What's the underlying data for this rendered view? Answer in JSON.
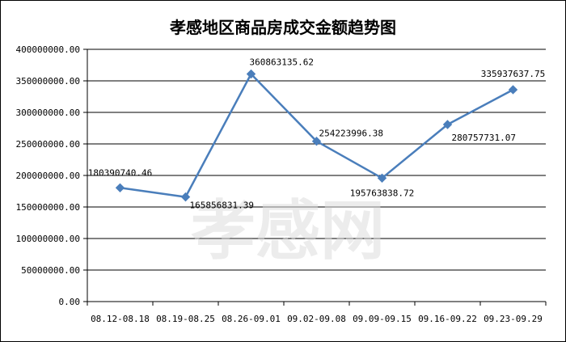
{
  "chart_data": {
    "type": "line",
    "title": "孝感地区商品房成交金额趋势图",
    "categories": [
      "08.12-08.18",
      "08.19-08.25",
      "08.26-09.01",
      "09.02-09.08",
      "09.09-09.15",
      "09.16-09.22",
      "09.23-09.29"
    ],
    "series": [
      {
        "values": [
          180390740.46,
          165856831.39,
          360863135.62,
          254223996.38,
          195763838.72,
          280757731.07,
          335937637.75
        ]
      }
    ],
    "data_labels": [
      "180390740.46",
      "165856831.39",
      "360863135.62",
      "254223996.38",
      "195763838.72",
      "280757731.07",
      "335937637.75"
    ],
    "y_ticks": [
      "0.00",
      "50000000.00",
      "100000000.00",
      "150000000.00",
      "200000000.00",
      "250000000.00",
      "300000000.00",
      "350000000.00",
      "400000000.00"
    ],
    "ylim": [
      0,
      400000000
    ],
    "grid": true,
    "legend": "none",
    "colors": {
      "line": "#4a7ebb",
      "marker": "#4a7ebb",
      "grid": "#000000"
    }
  },
  "watermark": "孝感网"
}
